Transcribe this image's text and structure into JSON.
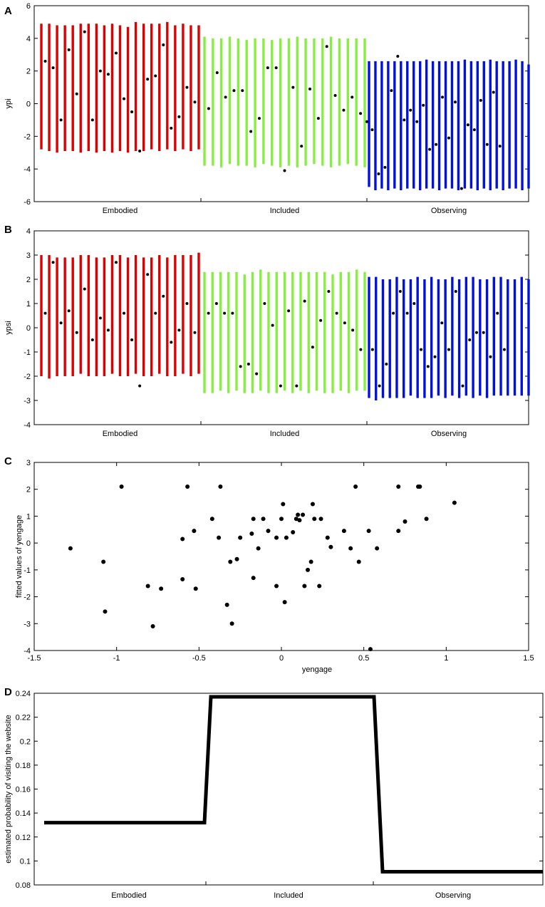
{
  "figure": {
    "panel_labels": [
      "A",
      "B",
      "C",
      "D"
    ],
    "group_colors": {
      "Embodied": "#dd0000",
      "Included": "#88ee44",
      "Observing": "#0011dd"
    },
    "axis_color": "#000000",
    "point_color": "#000000"
  },
  "chart_data": [
    {
      "panel": "A",
      "type": "errorbar",
      "ylabel": "ypi",
      "ylim": [
        -6,
        6
      ],
      "yticks": [
        -6,
        -4,
        -2,
        0,
        2,
        4,
        6
      ],
      "categories": [
        "Embodied",
        "Included",
        "Observing"
      ],
      "groups": [
        {
          "name": "Embodied",
          "intervals": [
            [
              -2.8,
              4.9
            ],
            [
              -2.9,
              4.9
            ],
            [
              -3.0,
              4.8
            ],
            [
              -2.9,
              4.8
            ],
            [
              -2.9,
              4.8
            ],
            [
              -3.0,
              4.9
            ],
            [
              -2.9,
              4.9
            ],
            [
              -3.0,
              4.9
            ],
            [
              -2.9,
              4.8
            ],
            [
              -3.0,
              4.9
            ],
            [
              -2.9,
              4.8
            ],
            [
              -3.0,
              4.7
            ],
            [
              -2.9,
              5.0
            ],
            [
              -2.9,
              4.9
            ],
            [
              -2.8,
              4.9
            ],
            [
              -2.9,
              4.9
            ],
            [
              -2.8,
              5.0
            ],
            [
              -2.9,
              4.8
            ],
            [
              -2.8,
              4.9
            ],
            [
              -2.9,
              4.8
            ],
            [
              -2.8,
              4.8
            ]
          ],
          "points": [
            2.6,
            2.2,
            -1.0,
            3.3,
            0.6,
            4.4,
            -1.0,
            2.0,
            1.8,
            3.1,
            0.3,
            -0.5,
            -2.9,
            1.5,
            1.7,
            3.6,
            -1.5,
            -0.8,
            1.0,
            0.1,
            null
          ]
        },
        {
          "name": "Included",
          "intervals": [
            [
              -3.8,
              4.1
            ],
            [
              -3.8,
              4.0
            ],
            [
              -3.9,
              4.0
            ],
            [
              -3.7,
              4.1
            ],
            [
              -3.8,
              4.0
            ],
            [
              -3.8,
              3.9
            ],
            [
              -3.9,
              4.0
            ],
            [
              -3.7,
              4.0
            ],
            [
              -3.8,
              3.9
            ],
            [
              -3.9,
              4.0
            ],
            [
              -3.8,
              4.0
            ],
            [
              -3.9,
              4.1
            ],
            [
              -3.8,
              4.0
            ],
            [
              -3.7,
              4.0
            ],
            [
              -3.8,
              4.0
            ],
            [
              -3.9,
              4.1
            ],
            [
              -3.8,
              4.0
            ],
            [
              -3.7,
              4.0
            ],
            [
              -3.8,
              4.0
            ],
            [
              -3.9,
              4.0
            ]
          ],
          "points": [
            -0.3,
            1.9,
            0.4,
            0.8,
            0.8,
            -1.7,
            -0.9,
            2.2,
            2.2,
            -4.1,
            1.0,
            -2.6,
            0.9,
            -0.9,
            3.5,
            0.5,
            -0.4,
            0.4,
            -0.6,
            -1.1
          ]
        },
        {
          "name": "Observing",
          "intervals": [
            [
              -5.1,
              2.6
            ],
            [
              -5.3,
              2.6
            ],
            [
              -5.2,
              2.6
            ],
            [
              -5.3,
              2.6
            ],
            [
              -5.2,
              2.6
            ],
            [
              -5.3,
              2.6
            ],
            [
              -5.2,
              2.6
            ],
            [
              -5.2,
              2.6
            ],
            [
              -5.3,
              2.6
            ],
            [
              -5.2,
              2.7
            ],
            [
              -5.2,
              2.6
            ],
            [
              -5.3,
              2.6
            ],
            [
              -5.2,
              2.6
            ],
            [
              -5.2,
              2.6
            ],
            [
              -5.3,
              2.6
            ],
            [
              -5.2,
              2.7
            ],
            [
              -5.2,
              2.6
            ],
            [
              -5.3,
              2.6
            ],
            [
              -5.2,
              2.6
            ],
            [
              -5.3,
              2.7
            ],
            [
              -5.2,
              2.6
            ],
            [
              -5.3,
              2.6
            ],
            [
              -5.2,
              2.6
            ],
            [
              -5.2,
              2.7
            ],
            [
              -5.3,
              2.6
            ],
            [
              -5.2,
              2.4
            ]
          ],
          "points": [
            -1.6,
            -4.3,
            -3.9,
            0.8,
            2.9,
            -1.0,
            -0.4,
            -1.1,
            -0.1,
            -2.8,
            -2.5,
            0.4,
            -2.1,
            0.1,
            -5.2,
            -1.3,
            -1.6,
            0.2,
            -2.5,
            0.7,
            -2.6,
            null,
            null,
            null,
            null,
            null
          ]
        }
      ]
    },
    {
      "panel": "B",
      "type": "errorbar",
      "ylabel": "ypsi",
      "ylim": [
        -4,
        4
      ],
      "yticks": [
        -4,
        -3,
        -2,
        -1,
        0,
        1,
        2,
        3,
        4
      ],
      "categories": [
        "Embodied",
        "Included",
        "Observing"
      ],
      "groups": [
        {
          "name": "Embodied",
          "intervals": [
            [
              -2.0,
              3.0
            ],
            [
              -2.1,
              3.0
            ],
            [
              -2.0,
              2.9
            ],
            [
              -2.0,
              2.9
            ],
            [
              -2.0,
              2.9
            ],
            [
              -1.9,
              3.0
            ],
            [
              -2.0,
              3.0
            ],
            [
              -2.0,
              2.9
            ],
            [
              -2.0,
              2.9
            ],
            [
              -1.9,
              3.0
            ],
            [
              -2.0,
              3.0
            ],
            [
              -2.0,
              2.9
            ],
            [
              -1.9,
              3.0
            ],
            [
              -2.0,
              2.9
            ],
            [
              -2.0,
              2.9
            ],
            [
              -1.9,
              3.0
            ],
            [
              -2.0,
              2.9
            ],
            [
              -2.0,
              3.0
            ],
            [
              -1.9,
              3.0
            ],
            [
              -2.0,
              3.0
            ],
            [
              -1.9,
              3.1
            ]
          ],
          "points": [
            0.6,
            2.7,
            0.2,
            0.7,
            -0.2,
            1.6,
            -0.5,
            0.4,
            -0.1,
            2.7,
            0.6,
            -0.5,
            -2.4,
            2.2,
            0.6,
            1.3,
            -0.6,
            -0.1,
            1.0,
            -0.2,
            null
          ]
        },
        {
          "name": "Included",
          "intervals": [
            [
              -2.7,
              2.3
            ],
            [
              -2.7,
              2.3
            ],
            [
              -2.6,
              2.3
            ],
            [
              -2.7,
              2.3
            ],
            [
              -2.6,
              2.3
            ],
            [
              -2.7,
              2.2
            ],
            [
              -2.7,
              2.3
            ],
            [
              -2.6,
              2.4
            ],
            [
              -2.7,
              2.3
            ],
            [
              -2.7,
              2.3
            ],
            [
              -2.6,
              2.3
            ],
            [
              -2.7,
              2.3
            ],
            [
              -2.6,
              2.3
            ],
            [
              -2.7,
              2.3
            ],
            [
              -2.6,
              2.3
            ],
            [
              -2.7,
              2.3
            ],
            [
              -2.7,
              2.2
            ],
            [
              -2.6,
              2.3
            ],
            [
              -2.7,
              2.3
            ],
            [
              -2.6,
              2.4
            ],
            [
              -2.6,
              2.3
            ]
          ],
          "points": [
            0.6,
            1.0,
            0.6,
            0.6,
            -1.6,
            -1.5,
            -1.9,
            1.0,
            0.1,
            -2.4,
            0.7,
            -2.4,
            1.1,
            -0.8,
            0.3,
            1.5,
            0.6,
            0.2,
            -0.1,
            -0.9,
            null
          ]
        },
        {
          "name": "Observing",
          "intervals": [
            [
              -2.9,
              2.1
            ],
            [
              -3.0,
              2.1
            ],
            [
              -2.9,
              2.0
            ],
            [
              -2.9,
              2.0
            ],
            [
              -2.9,
              2.1
            ],
            [
              -2.9,
              2.0
            ],
            [
              -2.8,
              2.0
            ],
            [
              -2.9,
              2.1
            ],
            [
              -2.9,
              2.0
            ],
            [
              -2.9,
              2.1
            ],
            [
              -2.8,
              2.0
            ],
            [
              -2.9,
              2.0
            ],
            [
              -2.8,
              2.1
            ],
            [
              -2.9,
              2.0
            ],
            [
              -2.8,
              2.1
            ],
            [
              -2.9,
              2.1
            ],
            [
              -2.8,
              2.0
            ],
            [
              -2.9,
              2.0
            ],
            [
              -2.8,
              2.1
            ],
            [
              -2.8,
              2.1
            ],
            [
              -2.8,
              2.0
            ],
            [
              -2.8,
              2.0
            ],
            [
              -2.8,
              2.1
            ],
            [
              -2.8,
              2.0
            ]
          ],
          "points": [
            -0.9,
            -2.4,
            -1.5,
            0.6,
            1.5,
            0.6,
            1.0,
            -0.9,
            -1.6,
            -1.2,
            0.2,
            -0.9,
            1.5,
            -2.4,
            -0.5,
            -0.2,
            -0.2,
            -1.2,
            0.6,
            -0.9,
            null,
            null,
            null,
            null
          ]
        }
      ]
    },
    {
      "panel": "C",
      "type": "scatter",
      "xlabel": "yengage",
      "ylabel": "fitted values of yengage",
      "xlim": [
        -1.5,
        1.5
      ],
      "ylim": [
        -4,
        3
      ],
      "xticks": [
        -1.5,
        -1,
        -0.5,
        0,
        0.5,
        1,
        1.5
      ],
      "yticks": [
        -4,
        -3,
        -2,
        -1,
        0,
        1,
        2,
        3
      ],
      "points": [
        [
          -1.28,
          -0.2
        ],
        [
          -1.08,
          -0.7
        ],
        [
          -1.07,
          -2.55
        ],
        [
          -0.97,
          2.1
        ],
        [
          -0.81,
          -1.6
        ],
        [
          -0.78,
          -3.1
        ],
        [
          -0.73,
          -1.7
        ],
        [
          -0.6,
          0.15
        ],
        [
          -0.6,
          -1.35
        ],
        [
          -0.57,
          2.1
        ],
        [
          -0.53,
          0.45
        ],
        [
          -0.52,
          -1.7
        ],
        [
          -0.42,
          0.9
        ],
        [
          -0.38,
          0.2
        ],
        [
          -0.37,
          2.1
        ],
        [
          -0.33,
          -2.3
        ],
        [
          -0.31,
          -0.7
        ],
        [
          -0.3,
          -3.0
        ],
        [
          -0.27,
          -0.6
        ],
        [
          -0.25,
          0.2
        ],
        [
          -0.18,
          0.35
        ],
        [
          -0.17,
          0.9
        ],
        [
          -0.17,
          -1.3
        ],
        [
          -0.14,
          -0.2
        ],
        [
          -0.11,
          0.9
        ],
        [
          -0.08,
          0.45
        ],
        [
          -0.03,
          -1.6
        ],
        [
          -0.03,
          0.2
        ],
        [
          0.0,
          0.9
        ],
        [
          0.01,
          1.45
        ],
        [
          0.02,
          -2.2
        ],
        [
          0.03,
          0.2
        ],
        [
          0.07,
          0.4
        ],
        [
          0.09,
          0.9
        ],
        [
          0.1,
          1.05
        ],
        [
          0.11,
          0.85
        ],
        [
          0.13,
          1.05
        ],
        [
          0.14,
          -1.6
        ],
        [
          0.16,
          -1.0
        ],
        [
          0.18,
          -0.7
        ],
        [
          0.19,
          1.45
        ],
        [
          0.2,
          0.9
        ],
        [
          0.23,
          -1.6
        ],
        [
          0.24,
          0.9
        ],
        [
          0.28,
          0.2
        ],
        [
          0.3,
          -0.15
        ],
        [
          0.38,
          0.45
        ],
        [
          0.42,
          -0.2
        ],
        [
          0.45,
          2.1
        ],
        [
          0.47,
          -0.7
        ],
        [
          0.53,
          0.45
        ],
        [
          0.54,
          -3.95
        ],
        [
          0.58,
          -0.2
        ],
        [
          0.71,
          2.1
        ],
        [
          0.71,
          0.45
        ],
        [
          0.75,
          0.8
        ],
        [
          0.83,
          2.1
        ],
        [
          0.84,
          2.1
        ],
        [
          0.88,
          0.9
        ],
        [
          1.05,
          1.5
        ]
      ]
    },
    {
      "panel": "D",
      "type": "line",
      "ylabel": "estimated probability of visiting the website",
      "ylim": [
        0.08,
        0.24
      ],
      "yticks": [
        0.08,
        0.1,
        0.12,
        0.14,
        0.16,
        0.18,
        0.2,
        0.22,
        0.24
      ],
      "ytick_labels": [
        "0.08",
        "0.1",
        "0.12",
        "0.14",
        "0.16",
        "0.18",
        "0.2",
        "0.22",
        "0.24"
      ],
      "categories": [
        "Embodied",
        "Included",
        "Observing"
      ],
      "values": [
        0.132,
        0.237,
        0.091
      ]
    }
  ]
}
